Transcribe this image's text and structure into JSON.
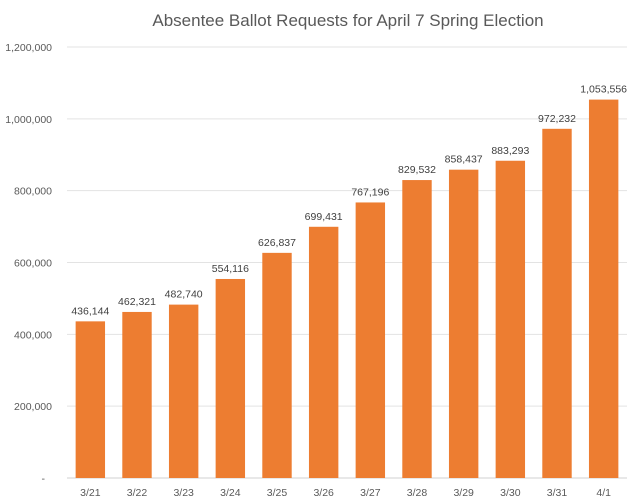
{
  "chart_data": {
    "type": "bar",
    "title": "Absentee Ballot Requests for April 7 Spring Election",
    "categories": [
      "3/21",
      "3/22",
      "3/23",
      "3/24",
      "3/25",
      "3/26",
      "3/27",
      "3/28",
      "3/29",
      "3/30",
      "3/31",
      "4/1"
    ],
    "values": [
      436144,
      462321,
      482740,
      554116,
      626837,
      699431,
      767196,
      829532,
      858437,
      883293,
      972232,
      1053556
    ],
    "data_labels": [
      "436,144",
      "462,321",
      "482,740",
      "554,116",
      "626,837",
      "699,431",
      "767,196",
      "829,532",
      "858,437",
      "883,293",
      "972,232",
      "1,053,556"
    ],
    "ylim": [
      0,
      1200000
    ],
    "yticks": [
      0,
      200000,
      400000,
      600000,
      800000,
      1000000,
      1200000
    ],
    "ytick_labels": [
      "-",
      "200,000",
      "400,000",
      "600,000",
      "800,000",
      "1,000,000",
      "1,200,000"
    ],
    "grid": true,
    "bar_color": "#ED7D31",
    "xlabel": "",
    "ylabel": ""
  }
}
